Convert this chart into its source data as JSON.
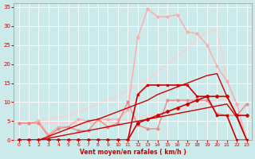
{
  "title": "",
  "xlabel": "Vent moyen/en rafales ( km/h )",
  "ylabel": "",
  "background_color": "#cceaea",
  "text_color": "#cc0000",
  "xlim": [
    -0.5,
    23.5
  ],
  "ylim": [
    0,
    36
  ],
  "yticks": [
    0,
    5,
    10,
    15,
    20,
    25,
    30,
    35
  ],
  "xticks": [
    0,
    1,
    2,
    3,
    4,
    5,
    6,
    7,
    8,
    9,
    10,
    11,
    12,
    13,
    14,
    15,
    16,
    17,
    18,
    19,
    20,
    21,
    22,
    23
  ],
  "lines": [
    {
      "x": [
        0,
        1,
        2,
        3,
        4,
        5,
        6,
        7,
        8,
        9,
        10,
        11,
        12,
        13,
        14,
        15,
        16,
        17,
        18,
        19,
        20,
        21,
        22,
        23
      ],
      "y": [
        0,
        0,
        0,
        0,
        0,
        0,
        0,
        0,
        0,
        0,
        0,
        0,
        12,
        14.5,
        14.5,
        14.5,
        14.5,
        14.5,
        11.5,
        11.5,
        6.5,
        6.5,
        0,
        0
      ],
      "color": "#cc0000",
      "lw": 1.2,
      "marker": "s",
      "ms": 2.0,
      "zorder": 6
    },
    {
      "x": [
        0,
        1,
        2,
        3,
        4,
        5,
        6,
        7,
        8,
        9,
        10,
        11,
        12,
        13,
        14,
        15,
        16,
        17,
        18,
        19,
        20,
        21,
        22,
        23
      ],
      "y": [
        0,
        0,
        0,
        0,
        0,
        0,
        0,
        0,
        0,
        0,
        0,
        0,
        4.5,
        5.5,
        6.5,
        7.5,
        8.5,
        9.5,
        10.5,
        11.5,
        11.5,
        11.5,
        6.5,
        6.5
      ],
      "color": "#cc0000",
      "lw": 1.2,
      "marker": "P",
      "ms": 2.5,
      "zorder": 6
    },
    {
      "x": [
        0,
        1,
        2,
        3,
        4,
        5,
        6,
        7,
        8,
        9,
        10,
        11,
        12,
        13,
        14,
        15,
        16,
        17,
        18,
        19,
        20,
        21,
        22,
        23
      ],
      "y": [
        0,
        0,
        0,
        0.5,
        1.0,
        1.5,
        2.0,
        2.5,
        3.0,
        3.5,
        4.0,
        4.5,
        5.0,
        5.5,
        6.0,
        6.5,
        7.0,
        7.5,
        8.0,
        8.5,
        9.0,
        9.5,
        6.0,
        0
      ],
      "color": "#cc0000",
      "lw": 1.0,
      "marker": null,
      "ms": 0,
      "zorder": 4
    },
    {
      "x": [
        0,
        1,
        2,
        3,
        4,
        5,
        6,
        7,
        8,
        9,
        10,
        11,
        12,
        13,
        14,
        15,
        16,
        17,
        18,
        19,
        20,
        21,
        22,
        23
      ],
      "y": [
        0,
        0,
        0,
        1.0,
        2.0,
        3.0,
        4.0,
        5.0,
        5.5,
        6.5,
        7.5,
        8.5,
        9.5,
        10.5,
        12.0,
        13.0,
        14.0,
        15.0,
        16.0,
        17.0,
        17.5,
        11.5,
        6.5,
        0
      ],
      "color": "#cc0000",
      "lw": 1.0,
      "marker": null,
      "ms": 0,
      "zorder": 4
    },
    {
      "x": [
        0,
        1,
        2,
        3,
        4,
        5,
        6,
        7,
        8,
        9,
        10,
        11,
        12,
        13,
        14,
        15,
        16,
        17,
        18,
        19,
        20,
        21,
        22,
        23
      ],
      "y": [
        4.5,
        4.5,
        4.5,
        1.0,
        3.0,
        3.5,
        2.5,
        2.5,
        5.5,
        3.5,
        4.5,
        10.0,
        4.0,
        3.0,
        3.0,
        10.5,
        10.5,
        10.5,
        10.5,
        10.5,
        7.0,
        6.5,
        6.5,
        9.5
      ],
      "color": "#ee8888",
      "lw": 1.0,
      "marker": "o",
      "ms": 2.0,
      "zorder": 3
    },
    {
      "x": [
        0,
        1,
        2,
        3,
        4,
        5,
        6,
        7,
        8,
        9,
        10,
        11,
        12,
        13,
        14,
        15,
        16,
        17,
        18,
        19,
        20,
        21,
        22,
        23
      ],
      "y": [
        4.5,
        4.5,
        5.0,
        1.5,
        3.5,
        3.5,
        5.5,
        5.0,
        5.5,
        5.5,
        5.5,
        8.0,
        27.0,
        34.5,
        32.5,
        32.5,
        33.0,
        28.5,
        28.0,
        25.0,
        19.5,
        15.5,
        9.5,
        0
      ],
      "color": "#ffaaaa",
      "lw": 1.0,
      "marker": "o",
      "ms": 2.0,
      "zorder": 2
    },
    {
      "x": [
        0,
        1,
        2,
        3,
        4,
        5,
        6,
        7,
        8,
        9,
        10,
        11,
        12,
        13,
        14,
        15,
        16,
        17,
        18,
        19,
        20,
        21,
        22,
        23
      ],
      "y": [
        4.5,
        4.5,
        4.5,
        4.5,
        4.5,
        4.5,
        4.5,
        4.5,
        4.5,
        4.5,
        5.0,
        5.5,
        6.0,
        6.5,
        7.0,
        7.5,
        8.0,
        8.5,
        9.0,
        10.0,
        10.5,
        11.0,
        6.5,
        9.5
      ],
      "color": "#ffcccc",
      "lw": 1.0,
      "marker": null,
      "ms": 0,
      "zorder": 1
    },
    {
      "x": [
        0,
        1,
        2,
        3,
        4,
        5,
        6,
        7,
        8,
        9,
        10,
        11,
        12,
        13,
        14,
        15,
        16,
        17,
        18,
        19,
        20,
        21,
        22,
        23
      ],
      "y": [
        4.5,
        4.5,
        5.0,
        5.5,
        6.0,
        6.5,
        7.5,
        8.5,
        9.5,
        10.5,
        11.5,
        13.0,
        14.5,
        16.0,
        18.0,
        20.0,
        22.0,
        24.0,
        26.5,
        28.5,
        29.0,
        15.5,
        9.5,
        0
      ],
      "color": "#ffcccc",
      "lw": 1.0,
      "marker": null,
      "ms": 0,
      "zorder": 1
    }
  ]
}
